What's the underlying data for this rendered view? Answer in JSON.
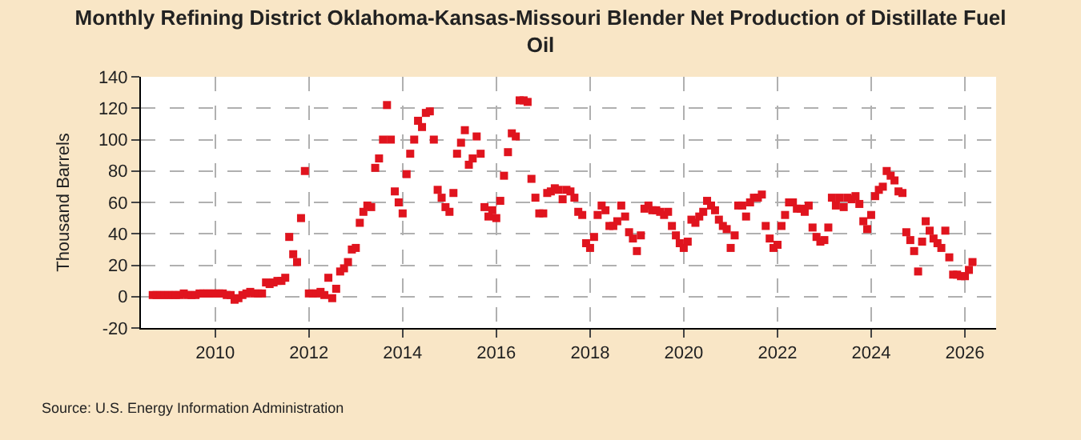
{
  "chart_data": {
    "type": "scatter",
    "title": "Monthly Refining District Oklahoma-Kansas-Missouri Blender Net Production of Distillate Fuel Oil",
    "ylabel": "Thousand Barrels",
    "annotations": [
      "Source: U.S. Energy Information Administration"
    ],
    "x": [
      "2008-09",
      "2008-10",
      "2008-11",
      "2008-12",
      "2009-01",
      "2009-02",
      "2009-03",
      "2009-04",
      "2009-05",
      "2009-06",
      "2009-07",
      "2009-08",
      "2009-09",
      "2009-10",
      "2009-11",
      "2009-12",
      "2010-01",
      "2010-02",
      "2010-03",
      "2010-04",
      "2010-05",
      "2010-06",
      "2010-07",
      "2010-08",
      "2010-09",
      "2010-10",
      "2010-11",
      "2010-12",
      "2011-01",
      "2011-02",
      "2011-03",
      "2011-04",
      "2011-05",
      "2011-06",
      "2011-07",
      "2011-08",
      "2011-09",
      "2011-10",
      "2011-11",
      "2011-12",
      "2012-01",
      "2012-02",
      "2012-03",
      "2012-04",
      "2012-05",
      "2012-06",
      "2012-07",
      "2012-08",
      "2012-09",
      "2012-10",
      "2012-11",
      "2012-12",
      "2013-01",
      "2013-02",
      "2013-03",
      "2013-04",
      "2013-05",
      "2013-06",
      "2013-07",
      "2013-08",
      "2013-09",
      "2013-10",
      "2013-11",
      "2013-12",
      "2014-01",
      "2014-02",
      "2014-03",
      "2014-04",
      "2014-05",
      "2014-06",
      "2014-07",
      "2014-08",
      "2014-09",
      "2014-10",
      "2014-11",
      "2014-12",
      "2015-01",
      "2015-02",
      "2015-03",
      "2015-04",
      "2015-05",
      "2015-06",
      "2015-07",
      "2015-08",
      "2015-09",
      "2015-10",
      "2015-11",
      "2015-12",
      "2016-01",
      "2016-02",
      "2016-03",
      "2016-04",
      "2016-05",
      "2016-06",
      "2016-07",
      "2016-08",
      "2016-09",
      "2016-10",
      "2016-11",
      "2016-12",
      "2017-01",
      "2017-02",
      "2017-03",
      "2017-04",
      "2017-05",
      "2017-06",
      "2017-07",
      "2017-08",
      "2017-09",
      "2017-10",
      "2017-11",
      "2017-12",
      "2018-01",
      "2018-02",
      "2018-03",
      "2018-04",
      "2018-05",
      "2018-06",
      "2018-07",
      "2018-08",
      "2018-09",
      "2018-10",
      "2018-11",
      "2018-12",
      "2019-01",
      "2019-02",
      "2019-03",
      "2019-04",
      "2019-05",
      "2019-06",
      "2019-07",
      "2019-08",
      "2019-09",
      "2019-10",
      "2019-11",
      "2019-12",
      "2020-01",
      "2020-02",
      "2020-03",
      "2020-04",
      "2020-05",
      "2020-06",
      "2020-07",
      "2020-08",
      "2020-09",
      "2020-10",
      "2020-11",
      "2020-12",
      "2021-01",
      "2021-02",
      "2021-03",
      "2021-04",
      "2021-05",
      "2021-06",
      "2021-07",
      "2021-08",
      "2021-09",
      "2021-10",
      "2021-11",
      "2021-12",
      "2022-01",
      "2022-02",
      "2022-03",
      "2022-04",
      "2022-05",
      "2022-06",
      "2022-07",
      "2022-08",
      "2022-09",
      "2022-10",
      "2022-11",
      "2022-12",
      "2023-01",
      "2023-02",
      "2023-03",
      "2023-04",
      "2023-05",
      "2023-06",
      "2023-07",
      "2023-08",
      "2023-09",
      "2023-10",
      "2023-11",
      "2023-12",
      "2024-01",
      "2024-02",
      "2024-03",
      "2024-04",
      "2024-05",
      "2024-06",
      "2024-07",
      "2024-08",
      "2024-09",
      "2024-10",
      "2024-11",
      "2024-12",
      "2025-01",
      "2025-02",
      "2025-03",
      "2025-04",
      "2025-05",
      "2025-06",
      "2025-07",
      "2025-08",
      "2025-09",
      "2025-10",
      "2025-11",
      "2025-12",
      "2026-01",
      "2026-02",
      "2026-03"
    ],
    "series": [
      {
        "color": "#e0141e",
        "values": [
          1,
          1,
          1,
          1,
          1,
          1,
          1,
          1,
          2,
          1,
          1,
          1,
          2,
          2,
          2,
          2,
          2,
          2,
          2,
          1,
          1,
          -2,
          -1,
          1,
          2,
          3,
          2,
          2,
          2,
          9,
          8,
          9,
          10,
          10,
          12,
          38,
          27,
          22,
          50,
          80,
          2,
          2,
          2,
          3,
          1,
          12,
          -1,
          5,
          16,
          18,
          22,
          30,
          31,
          47,
          54,
          58,
          57,
          82,
          88,
          100,
          122,
          100,
          67,
          60,
          53,
          78,
          91,
          100,
          112,
          108,
          117,
          118,
          100,
          68,
          63,
          57,
          54,
          66,
          91,
          98,
          106,
          84,
          88,
          102,
          91,
          57,
          51,
          55,
          50,
          61,
          77,
          92,
          104,
          102,
          125,
          125,
          124,
          75,
          63,
          53,
          53,
          66,
          67,
          69,
          68,
          62,
          68,
          67,
          63,
          54,
          52,
          34,
          31,
          38,
          52,
          58,
          55,
          45,
          45,
          48,
          58,
          51,
          41,
          37,
          29,
          39,
          56,
          58,
          55,
          55,
          54,
          52,
          54,
          45,
          39,
          34,
          31,
          35,
          49,
          47,
          51,
          54,
          61,
          58,
          55,
          49,
          45,
          43,
          31,
          39,
          58,
          58,
          51,
          60,
          63,
          63,
          65,
          45,
          37,
          31,
          33,
          45,
          52,
          60,
          60,
          56,
          56,
          54,
          58,
          44,
          38,
          35,
          36,
          44,
          63,
          58,
          63,
          57,
          63,
          62,
          64,
          59,
          48,
          43,
          52,
          64,
          68,
          70,
          80,
          77,
          74,
          67,
          66,
          41,
          36,
          29,
          16,
          35,
          48,
          42,
          37,
          34,
          31,
          42,
          25,
          14,
          14,
          13,
          13,
          17,
          22
        ]
      }
    ],
    "xlim": [
      "2008-06",
      "2026-09"
    ],
    "xticks": [
      "2010",
      "2012",
      "2014",
      "2016",
      "2018",
      "2020",
      "2022",
      "2024",
      "2026"
    ],
    "ylim": [
      -20,
      140
    ],
    "yticks": [
      -20,
      0,
      20,
      40,
      60,
      80,
      100,
      120,
      140
    ],
    "grid": true,
    "marker": "square"
  }
}
